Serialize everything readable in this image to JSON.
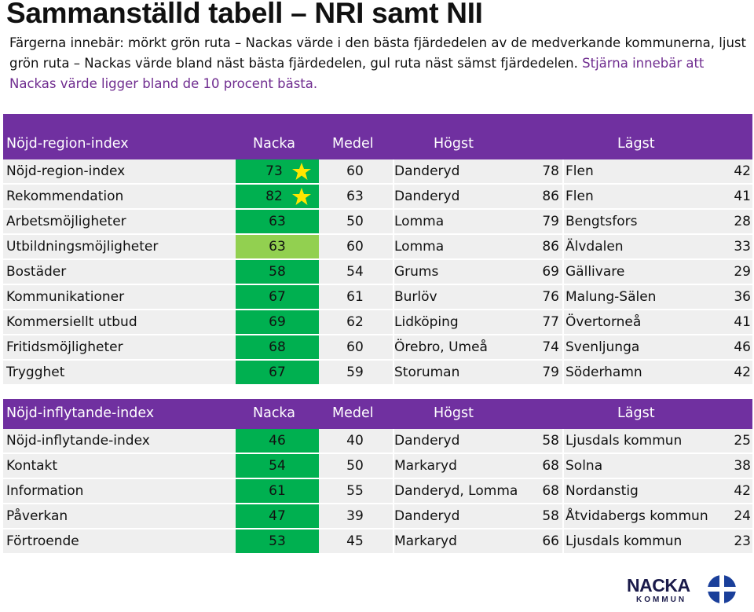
{
  "title": "Sammanställd tabell – NRI samt NII",
  "intro": {
    "main": "Färgerna innebär: mörkt grön ruta – Nackas värde i den bästa fjärdedelen av de medverkande kommunerna, ljust grön ruta – Nackas värde bland näst bästa fjärdedelen, gul ruta näst sämst fjärdedelen.",
    "highlight": "Stjärna innebär att Nackas värde ligger bland de 10 procent bästa."
  },
  "colors": {
    "header": "#7030a0",
    "dark_green": "#00b050",
    "light_green": "#92d050",
    "star": "#ffe600",
    "row": "#efefef"
  },
  "nri": {
    "headers": {
      "name": "Nöjd-region-index",
      "nacka": "Nacka",
      "medel": "Medel",
      "hogst": "Högst",
      "lagst": "Lägst"
    },
    "rows": [
      {
        "name": "Nöjd-region-index",
        "nacka": "73",
        "medel": "60",
        "high_name": "Danderyd",
        "high_val": "78",
        "low_name": "Flen",
        "low_val": "42"
      },
      {
        "name": "Rekommendation",
        "nacka": "82",
        "medel": "63",
        "high_name": "Danderyd",
        "high_val": "86",
        "low_name": "Flen",
        "low_val": "41"
      },
      {
        "name": "Arbetsmöjligheter",
        "nacka": "63",
        "medel": "50",
        "high_name": "Lomma",
        "high_val": "79",
        "low_name": "Bengtsfors",
        "low_val": "28"
      },
      {
        "name": "Utbildningsmöjligheter",
        "nacka": "63",
        "medel": "60",
        "high_name": "Lomma",
        "high_val": "86",
        "low_name": "Älvdalen",
        "low_val": "33"
      },
      {
        "name": "Bostäder",
        "nacka": "58",
        "medel": "54",
        "high_name": "Grums",
        "high_val": "69",
        "low_name": "Gällivare",
        "low_val": "29"
      },
      {
        "name": "Kommunikationer",
        "nacka": "67",
        "medel": "61",
        "high_name": "Burlöv",
        "high_val": "76",
        "low_name": "Malung-Sälen",
        "low_val": "36"
      },
      {
        "name": "Kommersiellt utbud",
        "nacka": "69",
        "medel": "62",
        "high_name": "Lidköping",
        "high_val": "77",
        "low_name": "Övertorneå",
        "low_val": "41"
      },
      {
        "name": "Fritidsmöjligheter",
        "nacka": "68",
        "medel": "60",
        "high_name": "Örebro, Umeå",
        "high_val": "74",
        "low_name": "Svenljunga",
        "low_val": "46"
      },
      {
        "name": "Trygghet",
        "nacka": "67",
        "medel": "59",
        "high_name": "Storuman",
        "high_val": "79",
        "low_name": "Söderhamn",
        "low_val": "42"
      }
    ]
  },
  "nii": {
    "headers": {
      "name": "Nöjd-inflytande-index",
      "nacka": "Nacka",
      "medel": "Medel",
      "hogst": "Högst",
      "lagst": "Lägst"
    },
    "rows": [
      {
        "name": "Nöjd-inflytande-index",
        "nacka": "46",
        "medel": "40",
        "high_name": "Danderyd",
        "high_val": "58",
        "low_name": "Ljusdals kommun",
        "low_val": "25"
      },
      {
        "name": "Kontakt",
        "nacka": "54",
        "medel": "50",
        "high_name": "Markaryd",
        "high_val": "68",
        "low_name": "Solna",
        "low_val": "38"
      },
      {
        "name": "Information",
        "nacka": "61",
        "medel": "55",
        "high_name": "Danderyd, Lomma",
        "high_val": "68",
        "low_name": "Nordanstig",
        "low_val": "42"
      },
      {
        "name": "Påverkan",
        "nacka": "47",
        "medel": "39",
        "high_name": "Danderyd",
        "high_val": "58",
        "low_name": "Åtvidabergs kommun",
        "low_val": "24"
      },
      {
        "name": "Förtroende",
        "nacka": "53",
        "medel": "45",
        "high_name": "Markaryd",
        "high_val": "66",
        "low_name": "Ljusdals kommun",
        "low_val": "23"
      }
    ]
  },
  "logo": {
    "name": "NACKA",
    "sub": "KOMMUN"
  }
}
